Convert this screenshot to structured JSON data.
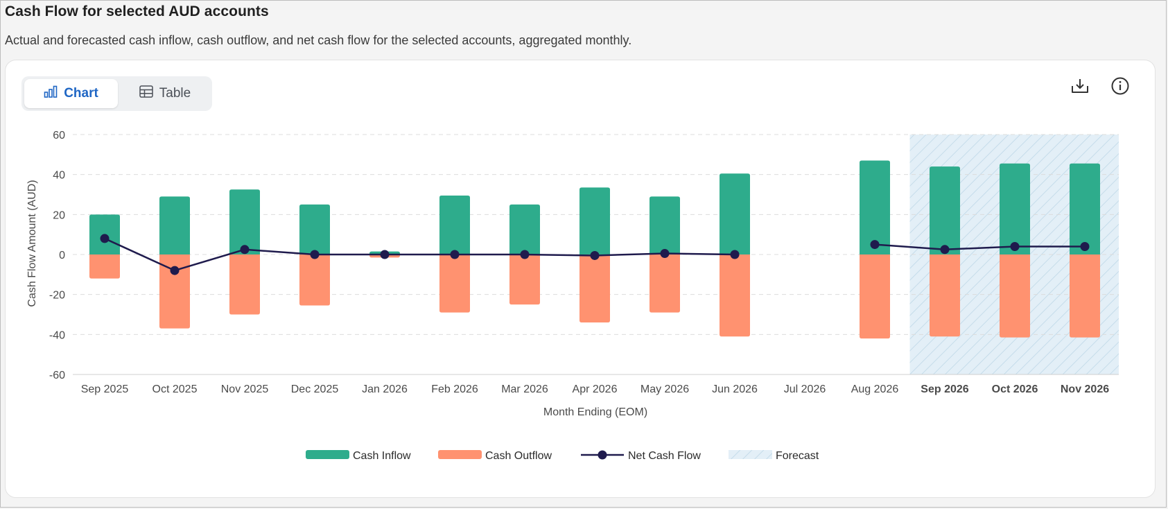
{
  "page": {
    "title": "Cash Flow for selected AUD accounts",
    "subtitle": "Actual and forecasted cash inflow, cash outflow, and net cash flow for the selected accounts, aggregated monthly."
  },
  "view_toggle": {
    "chart_label": "Chart",
    "table_label": "Table",
    "selected": "Chart",
    "chart_icon": "bar-chart-icon",
    "table_icon": "table-icon"
  },
  "actions": {
    "download_icon": "download-icon",
    "info_icon": "info-icon"
  },
  "colors": {
    "inflow": "#2eac8c",
    "outflow": "#ff9270",
    "net": "#1f1b4d",
    "forecast_fill": "#e3eff7",
    "forecast_hatch": "#c5dcea",
    "grid": "#dcdcdc",
    "accent": "#1f66c4"
  },
  "chart_data": {
    "type": "bar",
    "categories": [
      "Sep 2025",
      "Oct 2025",
      "Nov 2025",
      "Dec 2025",
      "Jan 2026",
      "Feb 2026",
      "Mar 2026",
      "Apr 2026",
      "May 2026",
      "Jun 2026",
      "Jul 2026",
      "Aug 2026",
      "Sep 2026",
      "Oct 2026",
      "Nov 2026"
    ],
    "forecast_categories": [
      "Sep 2026",
      "Oct 2026",
      "Nov 2026"
    ],
    "series": [
      {
        "name": "Cash Inflow",
        "type": "bar",
        "values": [
          20,
          29,
          32.5,
          25,
          1.5,
          29.5,
          25,
          33.5,
          29,
          40.5,
          null,
          47,
          44,
          45.5,
          45.5
        ]
      },
      {
        "name": "Cash Outflow",
        "type": "bar",
        "values": [
          -12,
          -37,
          -30,
          -25.5,
          -1.5,
          -29,
          -25,
          -34,
          -29,
          -41,
          null,
          -42,
          -41,
          -41.5,
          -41.5
        ]
      },
      {
        "name": "Net Cash Flow",
        "type": "line",
        "values": [
          8,
          -8,
          2.5,
          0,
          0,
          0,
          0,
          -0.5,
          0.5,
          0,
          null,
          5,
          2.5,
          4,
          4
        ]
      }
    ],
    "legend": [
      "Cash Inflow",
      "Cash Outflow",
      "Net Cash Flow",
      "Forecast"
    ],
    "legend_placement": "bottom-center",
    "xlabel": "Month Ending (EOM)",
    "ylabel": "Cash Flow Amount (AUD)",
    "ylim": [
      -60,
      60
    ],
    "yticks": [
      60,
      40,
      20,
      0,
      -20,
      -40,
      -60
    ],
    "grid": true
  }
}
